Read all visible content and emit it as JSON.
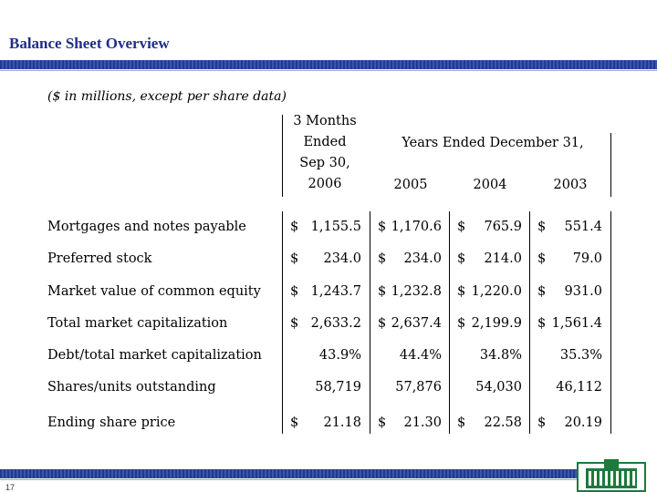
{
  "slide": {
    "title": "Balance Sheet Overview",
    "page_number": "17",
    "logo_icon": "building-logo-icon",
    "accent_color": "#1f2f86"
  },
  "table": {
    "subtitle": "($ in millions, except per share data)",
    "header_col1": [
      "3 Months",
      "Ended",
      "Sep 30,",
      "2006"
    ],
    "header_years_group": "Years Ended December 31,",
    "header_years": [
      "2005",
      "2004",
      "2003"
    ],
    "rows": [
      {
        "label": "Mortgages and notes payable",
        "cells": [
          {
            "d": "$",
            "v": "1,155.5"
          },
          {
            "d": "$",
            "v": "1,170.6"
          },
          {
            "d": "$",
            "v": "765.9"
          },
          {
            "d": "$",
            "v": "551.4"
          }
        ]
      },
      {
        "label": "Preferred stock",
        "cells": [
          {
            "d": "$",
            "v": "234.0"
          },
          {
            "d": "$",
            "v": "234.0"
          },
          {
            "d": "$",
            "v": "214.0"
          },
          {
            "d": "$",
            "v": "79.0"
          }
        ]
      },
      {
        "label": "Market value of common equity",
        "cells": [
          {
            "d": "$",
            "v": "1,243.7"
          },
          {
            "d": "$",
            "v": "1,232.8"
          },
          {
            "d": "$",
            "v": "1,220.0"
          },
          {
            "d": "$",
            "v": "931.0"
          }
        ]
      },
      {
        "label": "Total market capitalization",
        "cells": [
          {
            "d": "$",
            "v": "2,633.2"
          },
          {
            "d": "$",
            "v": "2,637.4"
          },
          {
            "d": "$",
            "v": "2,199.9"
          },
          {
            "d": "$",
            "v": "1,561.4"
          }
        ]
      },
      {
        "label": "Debt/total market capitalization",
        "cells": [
          {
            "d": "",
            "v": "43.9%"
          },
          {
            "d": "",
            "v": "44.4%"
          },
          {
            "d": "",
            "v": "34.8%"
          },
          {
            "d": "",
            "v": "35.3%"
          }
        ]
      },
      {
        "label": "Shares/units outstanding",
        "cells": [
          {
            "d": "",
            "v": "58,719"
          },
          {
            "d": "",
            "v": "57,876"
          },
          {
            "d": "",
            "v": "54,030"
          },
          {
            "d": "",
            "v": "46,112"
          }
        ]
      },
      {
        "label": "Ending share price",
        "cells": [
          {
            "d": "$",
            "v": "21.18"
          },
          {
            "d": "$",
            "v": "21.30"
          },
          {
            "d": "$",
            "v": "22.58"
          },
          {
            "d": "$",
            "v": "20.19"
          }
        ]
      }
    ]
  }
}
